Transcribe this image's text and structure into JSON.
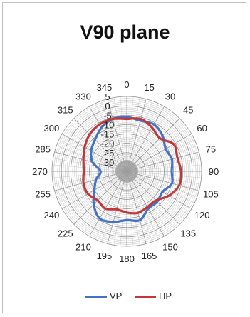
{
  "chart_data": {
    "type": "radar",
    "title": "V90 plane",
    "angle_labels": [
      "0",
      "15",
      "30",
      "45",
      "60",
      "75",
      "90",
      "105",
      "120",
      "135",
      "150",
      "165",
      "180",
      "195",
      "210",
      "225",
      "240",
      "255",
      "270",
      "285",
      "300",
      "315",
      "330",
      "345"
    ],
    "radial_labels": [
      "5",
      "0",
      "-5",
      "-10",
      "-15",
      "-20",
      "-25",
      "-30"
    ],
    "radial_range": [
      -35,
      5
    ],
    "radial_grid_step": 1,
    "grid": true,
    "legend_position": "bottom",
    "series": [
      {
        "name": "VP",
        "color": "#4472c4",
        "points": [
          [
            0,
            -6
          ],
          [
            15,
            -7
          ],
          [
            30,
            -6
          ],
          [
            45,
            -8
          ],
          [
            60,
            -11
          ],
          [
            75,
            -10
          ],
          [
            90,
            -11
          ],
          [
            105,
            -10
          ],
          [
            120,
            -13
          ],
          [
            135,
            -12
          ],
          [
            150,
            -12
          ],
          [
            165,
            -8
          ],
          [
            180,
            -9
          ],
          [
            195,
            -7
          ],
          [
            210,
            -6
          ],
          [
            225,
            -10
          ],
          [
            240,
            -15
          ],
          [
            255,
            -18
          ],
          [
            270,
            -21
          ],
          [
            285,
            -16
          ],
          [
            300,
            -13
          ],
          [
            315,
            -11
          ],
          [
            330,
            -8
          ],
          [
            345,
            -6
          ]
        ]
      },
      {
        "name": "HP",
        "color": "#c0383a",
        "points": [
          [
            0,
            -7
          ],
          [
            15,
            -6
          ],
          [
            30,
            -8
          ],
          [
            45,
            -10
          ],
          [
            60,
            -6
          ],
          [
            75,
            -7
          ],
          [
            90,
            -6
          ],
          [
            105,
            -6
          ],
          [
            120,
            -9
          ],
          [
            135,
            -13
          ],
          [
            150,
            -13
          ],
          [
            165,
            -12
          ],
          [
            180,
            -13
          ],
          [
            195,
            -14
          ],
          [
            210,
            -12
          ],
          [
            225,
            -13
          ],
          [
            240,
            -11
          ],
          [
            255,
            -11
          ],
          [
            270,
            -12
          ],
          [
            285,
            -11
          ],
          [
            300,
            -9
          ],
          [
            315,
            -7
          ],
          [
            330,
            -6
          ],
          [
            345,
            -6
          ]
        ]
      }
    ]
  }
}
